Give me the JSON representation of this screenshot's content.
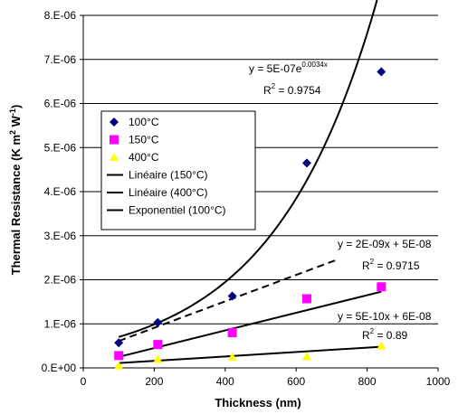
{
  "chart_data": {
    "type": "scatter",
    "title": "",
    "xlabel": "Thickness (nm)",
    "ylabel": "Thermal Resistance (K m² W⁻¹)",
    "xlim": [
      0,
      1000
    ],
    "ylim": [
      0,
      8e-06
    ],
    "x_ticks": [
      0,
      200,
      400,
      600,
      800,
      1000
    ],
    "x_tick_labels": [
      "0",
      "200",
      "400",
      "600",
      "800",
      "1000"
    ],
    "y_ticks": [
      0,
      1e-06,
      2e-06,
      3e-06,
      4e-06,
      5e-06,
      6e-06,
      7e-06,
      8e-06
    ],
    "y_tick_labels": [
      "0.E+00",
      "1.E-06",
      "2.E-06",
      "3.E-06",
      "4.E-06",
      "5.E-06",
      "6.E-06",
      "7.E-06",
      "8.E-06"
    ],
    "grid": "horizontal",
    "legend_position": "upper-left",
    "series": [
      {
        "name": "100°C",
        "marker": "diamond",
        "color": "#00007f",
        "x": [
          100,
          210,
          420,
          630,
          840
        ],
        "y": [
          5.7e-07,
          1.03e-06,
          1.63e-06,
          4.65e-06,
          6.72e-06
        ]
      },
      {
        "name": "150°C",
        "marker": "square",
        "color": "#ff00ff",
        "x": [
          100,
          210,
          420,
          630,
          840
        ],
        "y": [
          2.8e-07,
          5.3e-07,
          8e-07,
          1.57e-06,
          1.84e-06
        ]
      },
      {
        "name": "400°C",
        "marker": "triangle",
        "color": "#ffff00",
        "x": [
          100,
          210,
          420,
          630,
          840
        ],
        "y": [
          5e-08,
          2e-07,
          2.5e-07,
          2.6e-07,
          5e-07
        ]
      }
    ],
    "trendlines": [
      {
        "name": "Linéaire (150°C)",
        "type": "linear",
        "style": "solid",
        "slope": 2e-09,
        "intercept": 5e-08,
        "x_range": [
          100,
          840
        ],
        "equation": "y = 2E-09x + 5E-08",
        "r2_label": "R",
        "r2_value": "= 0.9715"
      },
      {
        "name": "Linéaire (400°C)",
        "type": "linear",
        "style": "solid",
        "slope": 5e-10,
        "intercept": 6e-08,
        "x_range": [
          100,
          840
        ],
        "equation": "y = 5E-10x + 6E-08",
        "r2_label": "R",
        "r2_value": "= 0.89"
      },
      {
        "name": "Exponentiel (100°C)",
        "type": "exponential",
        "style": "solid",
        "a": 5e-07,
        "b": 0.0034,
        "x_range": [
          100,
          840
        ],
        "equation_base": "y = 5E-07e",
        "equation_exp": "0.0034x",
        "r2_label": "R",
        "r2_value": "= 0.9754"
      }
    ],
    "dashed_line": {
      "style": "dashed",
      "x": [
        100,
        720
      ],
      "y": [
        6.1e-07,
        2.47e-06
      ]
    },
    "legend": [
      "100°C",
      "150°C",
      "400°C",
      "Linéaire (150°C)",
      "Linéaire (400°C)",
      "Exponentiel (100°C)"
    ]
  }
}
